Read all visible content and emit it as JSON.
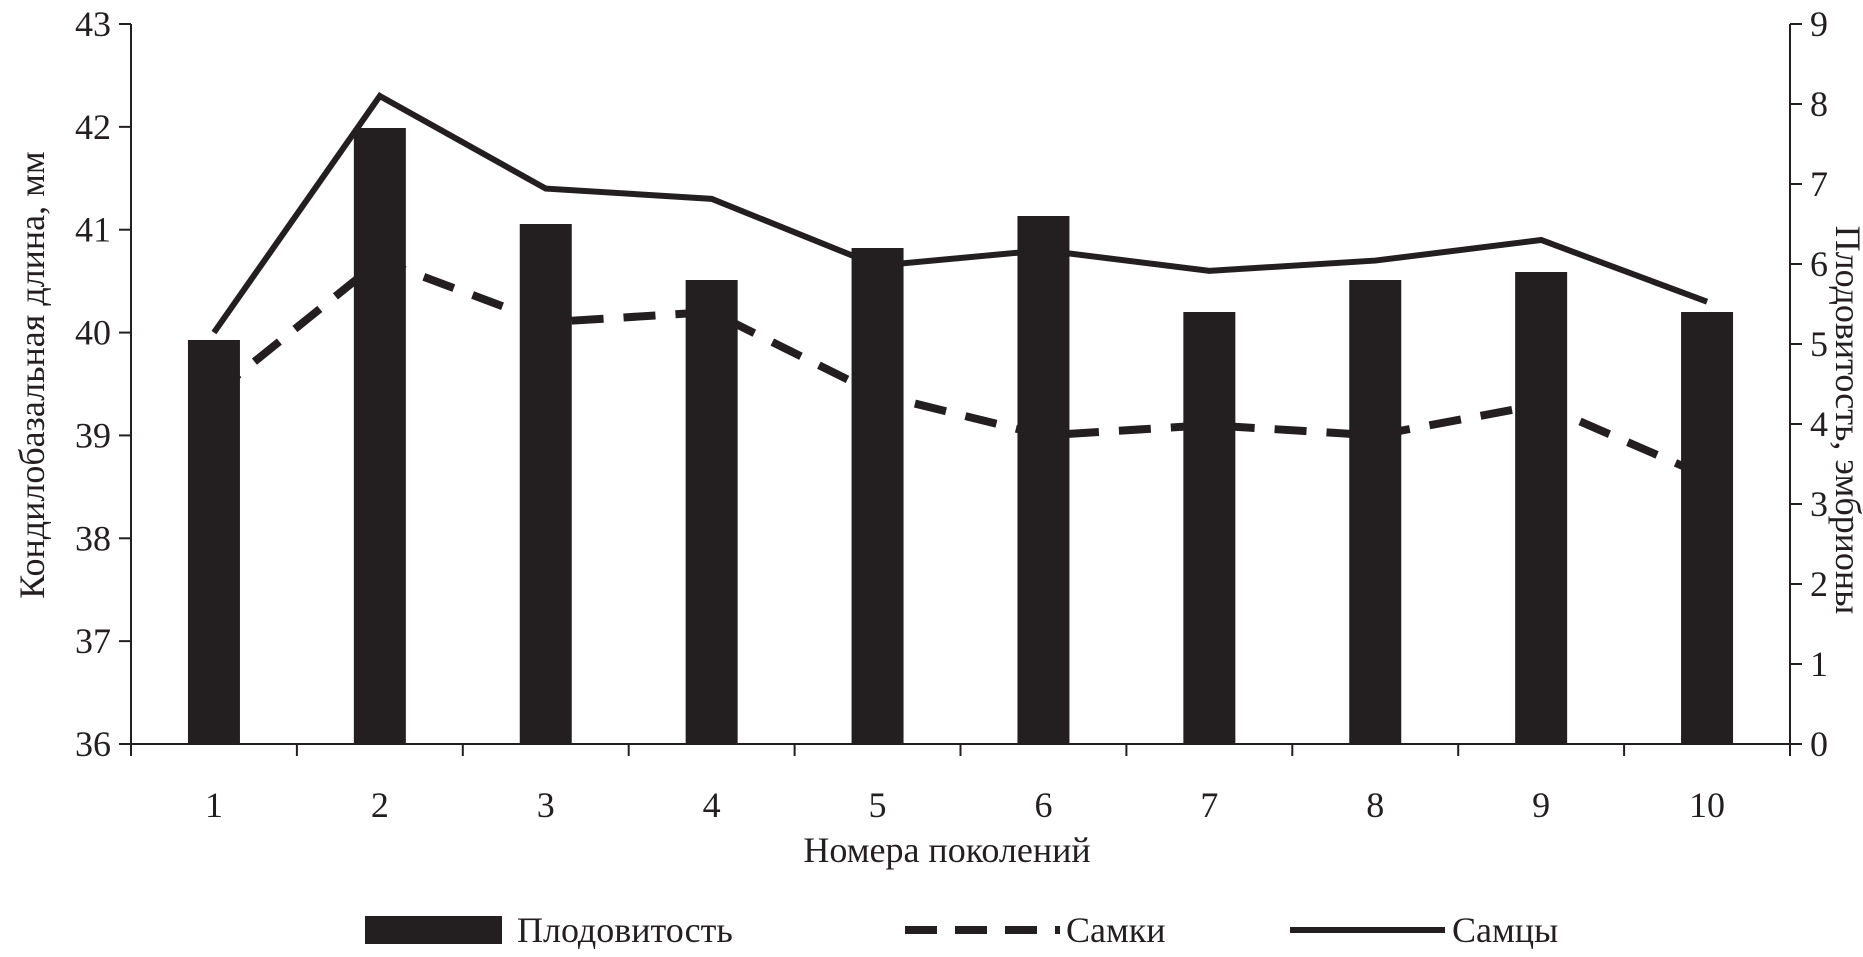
{
  "chart_data": {
    "type": "bar",
    "title": "",
    "xlabel": "Номера поколений",
    "ylabel_left": "Кондилобазальная длина, мм",
    "ylabel_right": "Плодовитость, эмбрионы",
    "categories": [
      "1",
      "2",
      "3",
      "4",
      "5",
      "6",
      "7",
      "8",
      "9",
      "10"
    ],
    "ylim_left": [
      36,
      43
    ],
    "yticks_left": [
      "36",
      "37",
      "38",
      "39",
      "40",
      "41",
      "42",
      "43"
    ],
    "ylim_right": [
      0,
      9
    ],
    "yticks_right": [
      "0",
      "1",
      "2",
      "3",
      "4",
      "5",
      "6",
      "7",
      "8",
      "9"
    ],
    "grid": false,
    "legend_position": "bottom",
    "series": [
      {
        "name": "Плодовитость",
        "kind": "bar",
        "axis": "right",
        "color": "#231f20",
        "values": [
          5.05,
          7.7,
          6.5,
          5.8,
          6.2,
          6.6,
          5.4,
          5.8,
          5.9,
          5.4
        ]
      },
      {
        "name": "Самки",
        "kind": "line",
        "style": "dashed",
        "axis": "left",
        "color": "#231f20",
        "values": [
          39.4,
          40.7,
          40.1,
          40.2,
          39.4,
          39.0,
          39.1,
          39.0,
          39.3,
          38.6
        ]
      },
      {
        "name": "Самцы",
        "kind": "line",
        "style": "solid",
        "axis": "left",
        "color": "#231f20",
        "values": [
          40.0,
          42.3,
          41.4,
          41.3,
          40.65,
          40.8,
          40.6,
          40.7,
          40.9,
          40.3
        ]
      }
    ]
  }
}
